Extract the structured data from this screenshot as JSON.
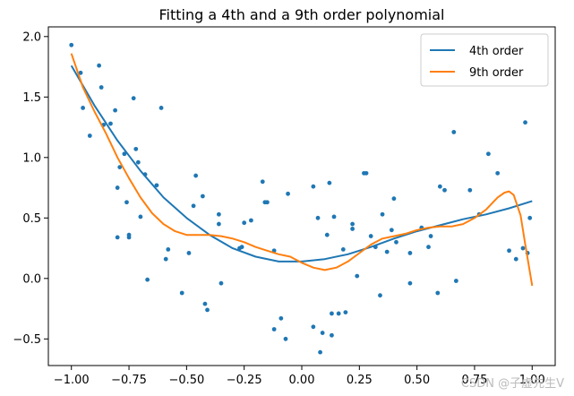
{
  "chart_data": {
    "type": "scatter",
    "title": "Fitting a 4th and a 9th order polynomial",
    "xlabel": "",
    "ylabel": "",
    "xlim": [
      -1.1,
      1.1
    ],
    "ylim": [
      -0.72,
      2.08
    ],
    "x_ticks": [
      -1.0,
      -0.75,
      -0.5,
      -0.25,
      0.0,
      0.25,
      0.5,
      0.75,
      1.0
    ],
    "x_tick_labels": [
      "−1.00",
      "−0.75",
      "−0.50",
      "−0.25",
      "0.00",
      "0.25",
      "0.50",
      "0.75",
      "1.00"
    ],
    "y_ticks": [
      -0.5,
      0.0,
      0.5,
      1.0,
      1.5,
      2.0
    ],
    "y_tick_labels": [
      "−0.5",
      "0.0",
      "0.5",
      "1.0",
      "1.5",
      "2.0"
    ],
    "legend_position": "top-right",
    "scatter": {
      "name": "data",
      "color": "#1f77b4",
      "points": [
        [
          -1.0,
          1.93
        ],
        [
          -0.96,
          1.7
        ],
        [
          -0.95,
          1.41
        ],
        [
          -0.92,
          1.18
        ],
        [
          -0.88,
          1.76
        ],
        [
          -0.87,
          1.58
        ],
        [
          -0.86,
          1.27
        ],
        [
          -0.83,
          1.28
        ],
        [
          -0.81,
          1.39
        ],
        [
          -0.8,
          0.75
        ],
        [
          -0.8,
          0.34
        ],
        [
          -0.79,
          0.92
        ],
        [
          -0.77,
          1.03
        ],
        [
          -0.76,
          0.63
        ],
        [
          -0.75,
          0.34
        ],
        [
          -0.75,
          0.36
        ],
        [
          -0.73,
          1.49
        ],
        [
          -0.72,
          1.07
        ],
        [
          -0.71,
          0.96
        ],
        [
          -0.7,
          0.51
        ],
        [
          -0.68,
          0.86
        ],
        [
          -0.67,
          -0.01
        ],
        [
          -0.63,
          0.77
        ],
        [
          -0.61,
          1.41
        ],
        [
          -0.59,
          0.16
        ],
        [
          -0.58,
          0.24
        ],
        [
          -0.52,
          -0.12
        ],
        [
          -0.49,
          0.21
        ],
        [
          -0.47,
          0.6
        ],
        [
          -0.46,
          0.85
        ],
        [
          -0.43,
          0.68
        ],
        [
          -0.42,
          -0.21
        ],
        [
          -0.41,
          -0.26
        ],
        [
          -0.36,
          0.53
        ],
        [
          -0.36,
          0.45
        ],
        [
          -0.35,
          -0.04
        ],
        [
          -0.27,
          0.25
        ],
        [
          -0.26,
          0.26
        ],
        [
          -0.25,
          0.46
        ],
        [
          -0.22,
          0.48
        ],
        [
          -0.17,
          0.8
        ],
        [
          -0.16,
          0.63
        ],
        [
          -0.15,
          0.63
        ],
        [
          -0.12,
          0.23
        ],
        [
          -0.12,
          -0.42
        ],
        [
          -0.09,
          -0.33
        ],
        [
          -0.07,
          -0.5
        ],
        [
          -0.06,
          0.7
        ],
        [
          0.05,
          0.76
        ],
        [
          0.05,
          -0.4
        ],
        [
          0.07,
          0.5
        ],
        [
          0.08,
          -0.61
        ],
        [
          0.09,
          -0.45
        ],
        [
          0.11,
          0.36
        ],
        [
          0.12,
          0.79
        ],
        [
          0.13,
          -0.29
        ],
        [
          0.13,
          -0.47
        ],
        [
          0.14,
          0.51
        ],
        [
          0.16,
          -0.29
        ],
        [
          0.18,
          0.24
        ],
        [
          0.19,
          -0.28
        ],
        [
          0.22,
          0.45
        ],
        [
          0.22,
          0.41
        ],
        [
          0.24,
          0.02
        ],
        [
          0.27,
          0.87
        ],
        [
          0.28,
          0.87
        ],
        [
          0.3,
          0.35
        ],
        [
          0.32,
          0.26
        ],
        [
          0.34,
          -0.14
        ],
        [
          0.35,
          0.53
        ],
        [
          0.37,
          0.22
        ],
        [
          0.39,
          0.4
        ],
        [
          0.4,
          0.66
        ],
        [
          0.41,
          0.3
        ],
        [
          0.47,
          -0.04
        ],
        [
          0.47,
          0.21
        ],
        [
          0.52,
          0.42
        ],
        [
          0.55,
          0.26
        ],
        [
          0.56,
          0.35
        ],
        [
          0.59,
          -0.12
        ],
        [
          0.6,
          0.76
        ],
        [
          0.62,
          0.73
        ],
        [
          0.66,
          1.21
        ],
        [
          0.67,
          -0.02
        ],
        [
          0.73,
          0.73
        ],
        [
          0.77,
          0.53
        ],
        [
          0.81,
          1.03
        ],
        [
          0.85,
          0.87
        ],
        [
          0.9,
          0.23
        ],
        [
          0.93,
          0.16
        ],
        [
          0.96,
          0.25
        ],
        [
          0.97,
          1.29
        ],
        [
          0.98,
          0.21
        ],
        [
          0.99,
          0.5
        ]
      ]
    },
    "series": [
      {
        "name": "4th order",
        "color": "#1f77b4",
        "x": [
          -1.0,
          -0.9,
          -0.8,
          -0.7,
          -0.6,
          -0.5,
          -0.4,
          -0.3,
          -0.2,
          -0.1,
          0.0,
          0.1,
          0.2,
          0.3,
          0.4,
          0.5,
          0.6,
          0.7,
          0.8,
          0.9,
          1.0
        ],
        "y": [
          1.76,
          1.43,
          1.14,
          0.89,
          0.67,
          0.5,
          0.36,
          0.25,
          0.18,
          0.14,
          0.14,
          0.16,
          0.2,
          0.26,
          0.33,
          0.39,
          0.44,
          0.49,
          0.53,
          0.58,
          0.64
        ]
      },
      {
        "name": "9th order",
        "color": "#ff7f0e",
        "x": [
          -1.0,
          -0.95,
          -0.9,
          -0.85,
          -0.8,
          -0.75,
          -0.7,
          -0.65,
          -0.6,
          -0.55,
          -0.5,
          -0.45,
          -0.4,
          -0.35,
          -0.3,
          -0.25,
          -0.2,
          -0.15,
          -0.1,
          -0.05,
          0.0,
          0.05,
          0.1,
          0.15,
          0.2,
          0.25,
          0.3,
          0.35,
          0.4,
          0.45,
          0.5,
          0.55,
          0.6,
          0.65,
          0.7,
          0.75,
          0.8,
          0.85,
          0.88,
          0.9,
          0.92,
          0.95,
          0.97,
          1.0
        ],
        "y": [
          1.86,
          1.58,
          1.38,
          1.2,
          1.0,
          0.83,
          0.67,
          0.54,
          0.45,
          0.39,
          0.36,
          0.36,
          0.36,
          0.35,
          0.33,
          0.3,
          0.26,
          0.23,
          0.2,
          0.18,
          0.13,
          0.09,
          0.07,
          0.09,
          0.14,
          0.21,
          0.28,
          0.33,
          0.35,
          0.37,
          0.4,
          0.42,
          0.43,
          0.43,
          0.45,
          0.5,
          0.57,
          0.67,
          0.71,
          0.72,
          0.69,
          0.52,
          0.28,
          -0.06
        ]
      }
    ]
  },
  "watermark": "CSDN @子虚先生V"
}
